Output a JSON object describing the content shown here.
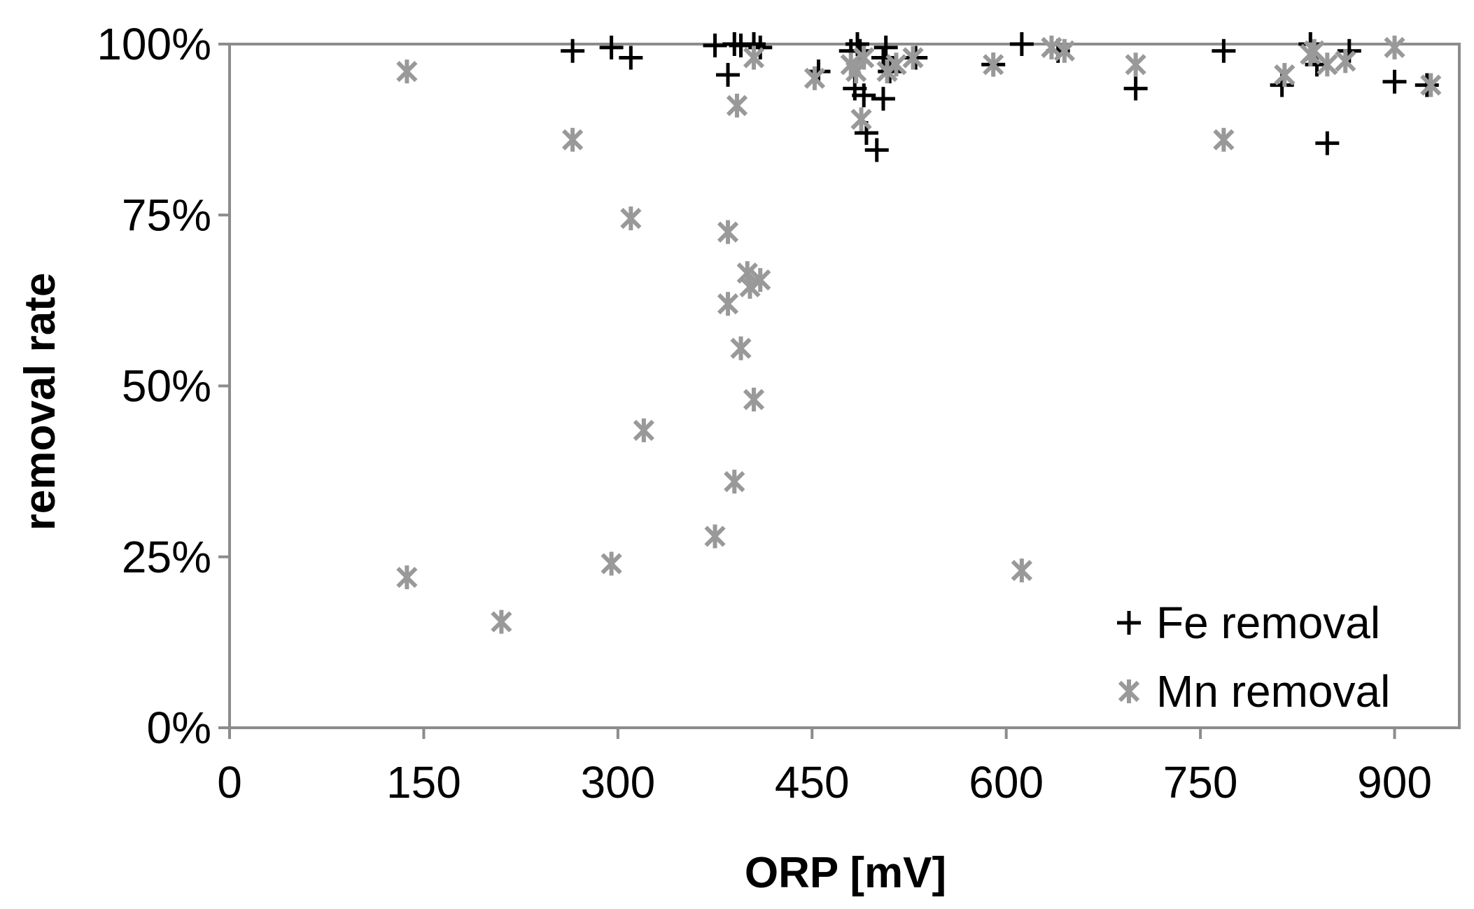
{
  "chart_data": {
    "type": "scatter",
    "xlabel": "ORP [mV]",
    "ylabel": "removal rate",
    "xlim": [
      0,
      950
    ],
    "ylim": [
      0,
      100
    ],
    "x_ticks": [
      0,
      150,
      300,
      450,
      600,
      750,
      900
    ],
    "y_ticks": [
      0,
      25,
      50,
      75,
      100
    ],
    "y_tick_format": "percent",
    "grid": false,
    "legend_position": "bottom-right",
    "series": [
      {
        "name": "Fe removal",
        "marker": "plus",
        "color": "#000000",
        "points": [
          [
            265,
            99
          ],
          [
            295,
            99.5
          ],
          [
            310,
            98
          ],
          [
            375,
            99.8
          ],
          [
            385,
            95.5
          ],
          [
            390,
            100
          ],
          [
            395,
            99.8
          ],
          [
            405,
            100
          ],
          [
            410,
            99.5
          ],
          [
            455,
            96
          ],
          [
            480,
            99
          ],
          [
            485,
            100
          ],
          [
            487,
            99
          ],
          [
            483,
            93.5
          ],
          [
            490,
            92.5
          ],
          [
            492,
            87
          ],
          [
            500,
            84.5
          ],
          [
            505,
            98
          ],
          [
            507,
            99.5
          ],
          [
            505,
            92
          ],
          [
            510,
            96
          ],
          [
            530,
            98
          ],
          [
            590,
            97
          ],
          [
            612,
            100
          ],
          [
            640,
            99
          ],
          [
            700,
            93.5
          ],
          [
            768,
            99
          ],
          [
            813,
            94
          ],
          [
            835,
            100
          ],
          [
            840,
            97
          ],
          [
            848,
            85.5
          ],
          [
            865,
            99
          ],
          [
            900,
            94.5
          ],
          [
            925,
            94
          ]
        ]
      },
      {
        "name": "Mn removal",
        "marker": "asterisk",
        "color": "#999999",
        "points": [
          [
            137,
            96
          ],
          [
            137,
            22
          ],
          [
            210,
            15.5
          ],
          [
            265,
            86
          ],
          [
            295,
            24
          ],
          [
            310,
            74.5
          ],
          [
            320,
            43.5
          ],
          [
            375,
            28
          ],
          [
            385,
            72.5
          ],
          [
            385,
            62
          ],
          [
            390,
            36
          ],
          [
            392,
            91
          ],
          [
            395,
            55.5
          ],
          [
            400,
            66.5
          ],
          [
            402,
            64.5
          ],
          [
            405,
            48
          ],
          [
            405,
            98
          ],
          [
            410,
            65.5
          ],
          [
            452,
            95
          ],
          [
            480,
            97
          ],
          [
            484,
            96
          ],
          [
            488,
            89
          ],
          [
            490,
            98
          ],
          [
            508,
            96
          ],
          [
            515,
            97
          ],
          [
            528,
            98
          ],
          [
            590,
            97
          ],
          [
            612,
            23
          ],
          [
            635,
            99.5
          ],
          [
            645,
            99
          ],
          [
            700,
            97
          ],
          [
            768,
            86
          ],
          [
            815,
            95.5
          ],
          [
            835,
            98.5
          ],
          [
            838,
            99
          ],
          [
            848,
            97
          ],
          [
            862,
            97.5
          ],
          [
            900,
            99.5
          ],
          [
            928,
            94
          ]
        ]
      }
    ]
  }
}
